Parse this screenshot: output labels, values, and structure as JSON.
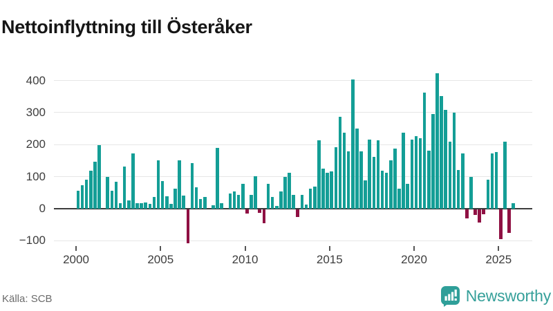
{
  "page": {
    "title": "Nettoinflyttning till Österåker",
    "source": "Källa: SCB",
    "logo_text": "Newsworthy"
  },
  "chart_data": {
    "type": "bar",
    "title": "Nettoinflyttning till Österåker",
    "frequency": "quarterly",
    "start_period": "2000-Q1",
    "end_period": "2025-Q4",
    "values": [
      55,
      73,
      91,
      119,
      147,
      198,
      0,
      100,
      56,
      84,
      18,
      131,
      25,
      173,
      18,
      17,
      20,
      15,
      36,
      151,
      86,
      39,
      14,
      62,
      150,
      40,
      -106,
      142,
      66,
      30,
      36,
      0,
      11,
      190,
      16,
      0,
      47,
      53,
      44,
      78,
      -14,
      42,
      101,
      -12,
      -43,
      78,
      36,
      9,
      53,
      98,
      113,
      44,
      -24,
      44,
      13,
      62,
      69,
      214,
      125,
      113,
      116,
      192,
      286,
      237,
      179,
      404,
      250,
      178,
      88,
      216,
      161,
      214,
      118,
      111,
      151,
      187,
      63,
      237,
      78,
      216,
      226,
      220,
      362,
      181,
      295,
      422,
      352,
      308,
      209,
      299,
      121,
      172,
      -28,
      100,
      -17,
      -42,
      -16,
      90,
      172,
      176,
      -92,
      210,
      -73,
      16
    ],
    "x_tick_labels": [
      "2000",
      "2005",
      "2010",
      "2015",
      "2020",
      "2025"
    ],
    "y_tick_labels": [
      400,
      300,
      200,
      100,
      0,
      -100
    ],
    "ylim": [
      -130,
      450
    ],
    "grid": true,
    "legend": "none",
    "colors": {
      "positive": "#149e96",
      "negative": "#8f1043"
    }
  }
}
